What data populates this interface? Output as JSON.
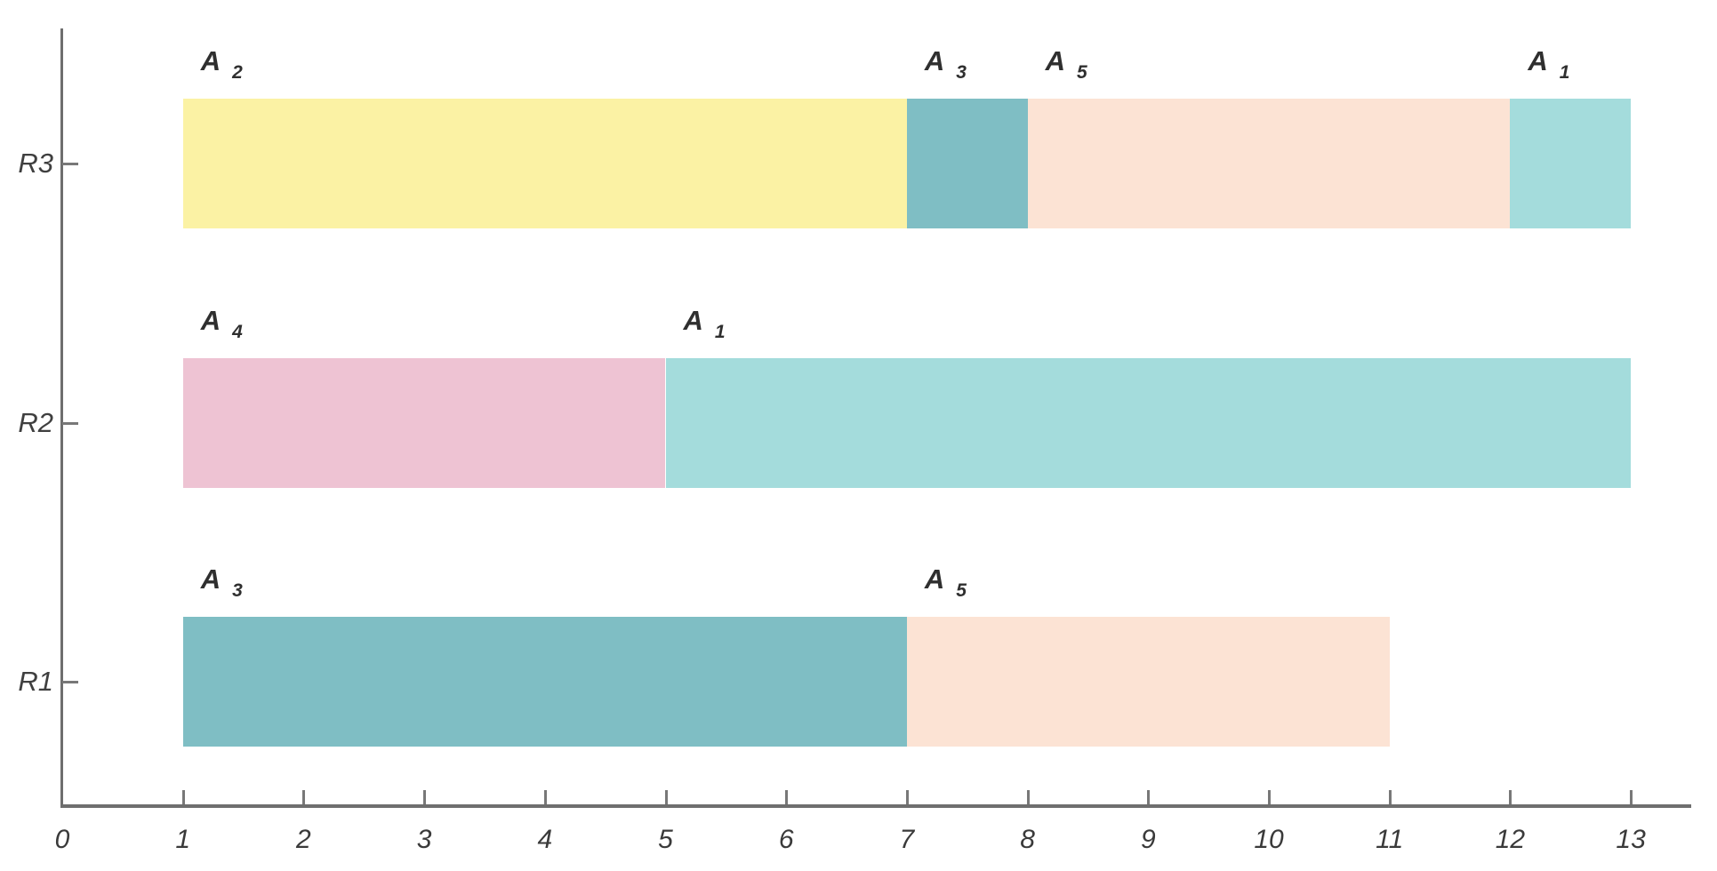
{
  "chart_data": {
    "type": "gantt",
    "title": "",
    "xlabel": "",
    "ylabel": "",
    "grid": false,
    "legend": "none",
    "xlim": [
      0,
      13.6
    ],
    "x_ticks": [
      0,
      1,
      2,
      3,
      4,
      5,
      6,
      7,
      8,
      9,
      10,
      11,
      12,
      13
    ],
    "y_order_bottom_to_top": [
      "R1",
      "R2",
      "R3"
    ],
    "activity_colors": {
      "A1": "#a4dcdc",
      "A2": "#fbf2a4",
      "A3": "#7fbec4",
      "A4": "#eec3d3",
      "A5": "#fce3d4"
    },
    "axis_color": "#6e6e6e",
    "text_color": "#3a3a3a",
    "rows_top_to_bottom": [
      {
        "label": "R3",
        "segments": [
          {
            "activity_id": "A2",
            "label_main": "A",
            "label_sub": "2",
            "start": 1,
            "end": 7
          },
          {
            "activity_id": "A3",
            "label_main": "A",
            "label_sub": "3",
            "start": 7,
            "end": 8
          },
          {
            "activity_id": "A5",
            "label_main": "A",
            "label_sub": "5",
            "start": 8,
            "end": 12
          },
          {
            "activity_id": "A1",
            "label_main": "A",
            "label_sub": "1",
            "start": 12,
            "end": 13
          }
        ]
      },
      {
        "label": "R2",
        "segments": [
          {
            "activity_id": "A4",
            "label_main": "A",
            "label_sub": "4",
            "start": 1,
            "end": 5
          },
          {
            "activity_id": "A1",
            "label_main": "A",
            "label_sub": "1",
            "start": 5,
            "end": 13
          }
        ]
      },
      {
        "label": "R1",
        "segments": [
          {
            "activity_id": "A3",
            "label_main": "A",
            "label_sub": "3",
            "start": 1,
            "end": 7
          },
          {
            "activity_id": "A5",
            "label_main": "A",
            "label_sub": "5",
            "start": 7,
            "end": 11
          }
        ]
      }
    ]
  }
}
